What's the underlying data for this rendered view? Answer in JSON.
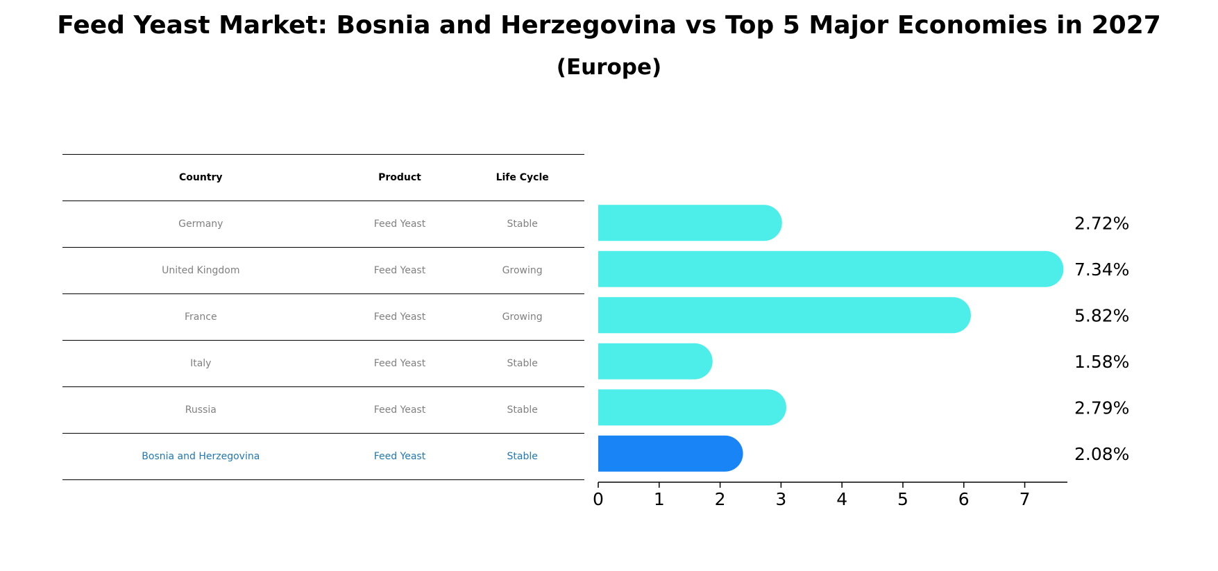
{
  "title": "Feed Yeast Market: Bosnia and Herzegovina vs Top 5 Major Economies in 2027",
  "subtitle": "(Europe)",
  "table": {
    "headers": [
      "Country",
      "Product",
      "Life Cycle"
    ],
    "rows": [
      {
        "country": "Germany",
        "product": "Feed Yeast",
        "life_cycle": "Stable"
      },
      {
        "country": "United Kingdom",
        "product": "Feed Yeast",
        "life_cycle": "Growing"
      },
      {
        "country": "France",
        "product": "Feed Yeast",
        "life_cycle": "Growing"
      },
      {
        "country": "Italy",
        "product": "Feed Yeast",
        "life_cycle": "Stable"
      },
      {
        "country": "Russia",
        "product": "Feed Yeast",
        "life_cycle": "Stable"
      },
      {
        "country": "Bosnia and Herzegovina",
        "product": "Feed Yeast",
        "life_cycle": "Stable"
      }
    ]
  },
  "chart_data": {
    "type": "bar",
    "orientation": "horizontal",
    "categories": [
      "Germany",
      "United Kingdom",
      "France",
      "Italy",
      "Russia",
      "Bosnia and Herzegovina"
    ],
    "values": [
      2.72,
      7.34,
      5.82,
      1.58,
      2.79,
      2.08
    ],
    "value_labels": [
      "2.72%",
      "7.34%",
      "5.82%",
      "1.58%",
      "2.79%",
      "2.08%"
    ],
    "highlight": "Bosnia and Herzegovina",
    "xlim": [
      0,
      7.7
    ],
    "xticks": [
      "0",
      "1",
      "2",
      "3",
      "4",
      "5",
      "6",
      "7"
    ],
    "colors": {
      "default": "#4DEEEA",
      "highlight": "#1984F5"
    }
  }
}
